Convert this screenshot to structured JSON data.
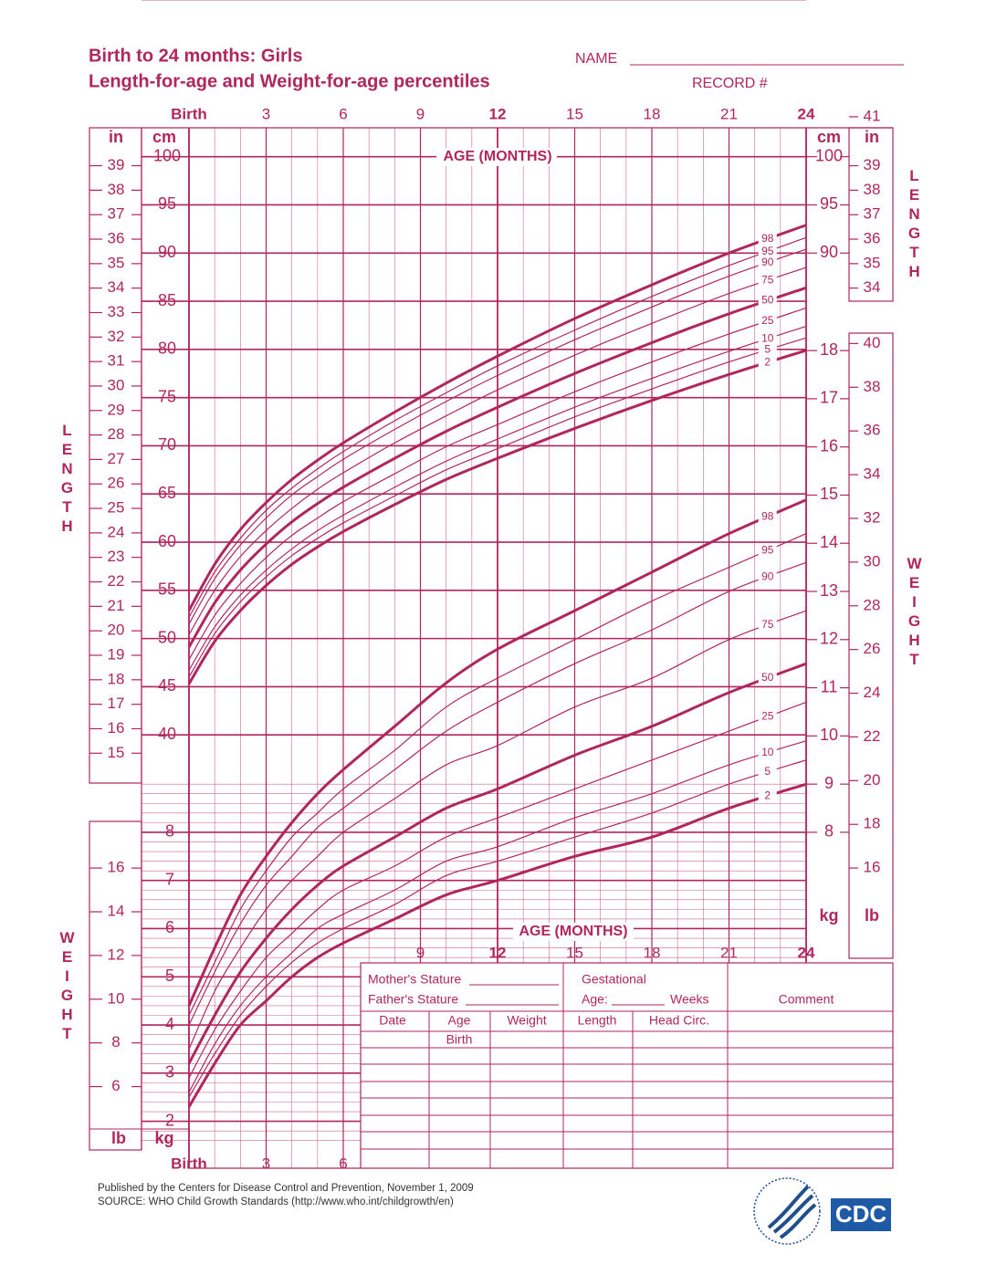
{
  "header": {
    "title": "Birth to 24 months: Girls",
    "subtitle": "Length-for-age and Weight-for-age percentiles",
    "name_label": "NAME",
    "record_label": "RECORD #"
  },
  "chart_data": [
    {
      "type": "line",
      "x_label": "AGE (MONTHS)",
      "y_label": "LENGTH",
      "y_unit": "cm",
      "y2_unit": "in",
      "color": "#b0265e",
      "grid": true,
      "x": [
        0,
        1,
        2,
        3,
        4,
        5,
        6,
        8,
        10,
        12,
        15,
        18,
        21,
        24
      ],
      "xlim": [
        0,
        24
      ],
      "xticks": [
        {
          "value": 0,
          "label": "Birth"
        },
        3,
        6,
        9,
        12,
        15,
        18,
        21,
        24
      ],
      "ylim": [
        35,
        103
      ],
      "yticks": [
        40,
        45,
        50,
        55,
        60,
        65,
        70,
        75,
        80,
        85,
        90,
        95,
        100
      ],
      "right_yticks": [
        90,
        95,
        100
      ],
      "y2lim": [
        13.78,
        40.55
      ],
      "y2ticks": [
        15,
        16,
        17,
        18,
        19,
        20,
        21,
        22,
        23,
        24,
        25,
        26,
        27,
        28,
        29,
        30,
        31,
        32,
        33,
        34,
        35,
        36,
        37,
        38,
        39
      ],
      "right_y2ticks": [
        34,
        35,
        36,
        37,
        38,
        39,
        41
      ],
      "series": [
        {
          "name": "2",
          "values": [
            45.3,
            49.7,
            52.9,
            55.5,
            57.7,
            59.5,
            61.1,
            63.9,
            66.5,
            68.7,
            71.8,
            74.7,
            77.4,
            79.9
          ]
        },
        {
          "name": "5",
          "values": [
            46.0,
            50.5,
            53.8,
            56.4,
            58.6,
            60.4,
            62.0,
            64.8,
            67.5,
            69.7,
            73.0,
            75.9,
            78.7,
            81.2
          ]
        },
        {
          "name": "10",
          "values": [
            46.7,
            51.2,
            54.5,
            57.1,
            59.3,
            61.2,
            62.8,
            65.7,
            68.4,
            70.7,
            74.0,
            77.0,
            79.8,
            82.4
          ]
        },
        {
          "name": "25",
          "values": [
            47.8,
            52.4,
            55.7,
            58.4,
            60.7,
            62.5,
            64.2,
            67.1,
            69.9,
            72.2,
            75.6,
            78.7,
            81.6,
            84.3
          ]
        },
        {
          "name": "50",
          "values": [
            49.1,
            53.7,
            57.1,
            59.8,
            62.1,
            64.0,
            65.7,
            68.7,
            71.5,
            74.0,
            77.5,
            80.7,
            83.7,
            86.4
          ]
        },
        {
          "name": "75",
          "values": [
            50.4,
            55.0,
            58.5,
            61.2,
            63.5,
            65.5,
            67.2,
            70.3,
            73.1,
            75.8,
            79.4,
            82.7,
            85.8,
            88.5
          ]
        },
        {
          "name": "90",
          "values": [
            51.5,
            56.2,
            59.7,
            62.5,
            64.9,
            66.8,
            68.6,
            71.7,
            74.6,
            77.3,
            81.0,
            84.4,
            87.6,
            90.4
          ]
        },
        {
          "name": "95",
          "values": [
            52.2,
            56.9,
            60.4,
            63.3,
            65.6,
            67.6,
            69.4,
            72.6,
            75.5,
            78.3,
            82.0,
            85.5,
            88.7,
            91.6
          ]
        },
        {
          "name": "98",
          "values": [
            52.9,
            57.7,
            61.3,
            64.1,
            66.5,
            68.5,
            70.3,
            73.5,
            76.5,
            79.3,
            83.2,
            86.7,
            90.0,
            92.9
          ]
        }
      ]
    },
    {
      "type": "line",
      "x_label": "AGE (MONTHS)",
      "y_label": "WEIGHT",
      "y_unit": "kg",
      "y2_unit": "lb",
      "color": "#b0265e",
      "grid": true,
      "x": [
        0,
        1,
        2,
        3,
        4,
        5,
        6,
        8,
        10,
        12,
        15,
        18,
        21,
        24
      ],
      "xlim": [
        0,
        24
      ],
      "xticks": [
        {
          "value": 0,
          "label": "Birth"
        },
        3,
        6,
        9,
        12,
        15,
        18,
        21,
        24
      ],
      "ylim": [
        1.5,
        18.4
      ],
      "yticks": [
        2,
        3,
        4,
        5,
        6,
        7,
        8
      ],
      "right_yticks": [
        8,
        9,
        10,
        11,
        12,
        13,
        14,
        15,
        16,
        17,
        18
      ],
      "y2lim": [
        3.31,
        40.56
      ],
      "y2ticks": [
        6,
        8,
        10,
        12,
        14,
        16
      ],
      "right_y2ticks": [
        16,
        18,
        20,
        22,
        24,
        26,
        28,
        30,
        32,
        34,
        36,
        38,
        40
      ],
      "series": [
        {
          "name": "2",
          "values": [
            2.3,
            3.2,
            4.0,
            4.5,
            5.0,
            5.4,
            5.7,
            6.2,
            6.7,
            7.0,
            7.5,
            7.9,
            8.5,
            9.0
          ]
        },
        {
          "name": "5",
          "values": [
            2.5,
            3.4,
            4.2,
            4.8,
            5.3,
            5.7,
            6.0,
            6.5,
            7.1,
            7.4,
            7.9,
            8.4,
            9.0,
            9.5
          ]
        },
        {
          "name": "10",
          "values": [
            2.6,
            3.6,
            4.4,
            5.0,
            5.5,
            6.0,
            6.3,
            6.8,
            7.4,
            7.7,
            8.3,
            8.8,
            9.4,
            9.9
          ]
        },
        {
          "name": "25",
          "values": [
            2.9,
            3.9,
            4.7,
            5.4,
            5.9,
            6.4,
            6.8,
            7.3,
            7.9,
            8.3,
            8.9,
            9.5,
            10.1,
            10.7
          ]
        },
        {
          "name": "50",
          "values": [
            3.2,
            4.2,
            5.1,
            5.8,
            6.4,
            6.9,
            7.3,
            7.9,
            8.5,
            8.9,
            9.6,
            10.2,
            10.9,
            11.5
          ]
        },
        {
          "name": "75",
          "values": [
            3.5,
            4.7,
            5.6,
            6.4,
            7.0,
            7.5,
            8.0,
            8.7,
            9.4,
            9.8,
            10.6,
            11.2,
            12.0,
            12.6
          ]
        },
        {
          "name": "90",
          "values": [
            4.0,
            5.1,
            6.1,
            6.9,
            7.5,
            8.1,
            8.5,
            9.3,
            10.1,
            10.7,
            11.5,
            12.2,
            13.0,
            13.6
          ]
        },
        {
          "name": "95",
          "values": [
            4.2,
            5.3,
            6.4,
            7.2,
            7.9,
            8.4,
            8.9,
            9.7,
            10.6,
            11.2,
            12.0,
            12.8,
            13.5,
            14.2
          ]
        },
        {
          "name": "98",
          "values": [
            4.4,
            5.6,
            6.7,
            7.5,
            8.2,
            8.8,
            9.3,
            10.2,
            11.1,
            11.8,
            12.6,
            13.4,
            14.2,
            14.9
          ]
        }
      ]
    }
  ],
  "record_form": {
    "mothers_stature": "Mother's Stature",
    "fathers_stature": "Father's Stature",
    "gestational": "Gestational",
    "age": "Age:",
    "weeks": "Weeks",
    "comment": "Comment",
    "columns": [
      "Date",
      "Age",
      "Weight",
      "Length",
      "Head Circ."
    ],
    "first_age": "Birth"
  },
  "footer": {
    "published": "Published by the Centers for Disease Control and Prevention, November 1, 2009",
    "source": "SOURCE:  WHO Child Growth Standards (http://www.who.int/childgrowth/en)",
    "logo": "CDC"
  }
}
